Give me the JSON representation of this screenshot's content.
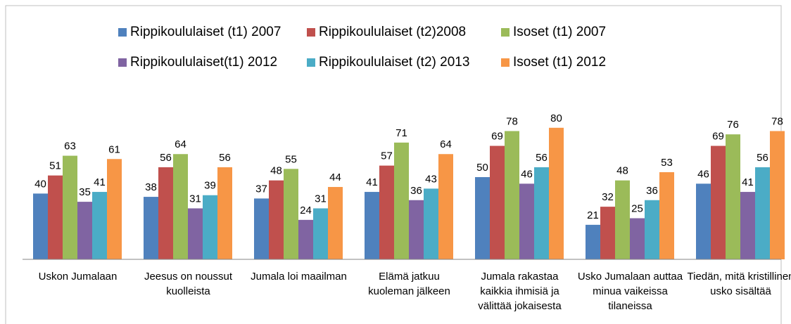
{
  "chart_data": {
    "type": "bar",
    "categories": [
      "Uskon Jumalaan",
      "Jeesus on noussut kuolleista",
      "Jumala loi maailman",
      "Elämä jatkuu kuoleman jälkeen",
      "Jumala rakastaa kaikkia ihmisiä ja välittää jokaisesta",
      "Usko Jumalaan auttaa minua vaikeissa tilaneissa",
      "Tiedän, mitä kristillinen usko sisältää"
    ],
    "series": [
      {
        "name": "Rippikoululaiset (t1) 2007",
        "color": "#4f81bd",
        "values": [
          40,
          38,
          37,
          41,
          50,
          21,
          46
        ]
      },
      {
        "name": "Rippikoululaiset (t2)2008",
        "color": "#c0504d",
        "values": [
          51,
          56,
          48,
          57,
          69,
          32,
          69
        ]
      },
      {
        "name": "Isoset (t1) 2007",
        "color": "#9bbb59",
        "values": [
          63,
          64,
          55,
          71,
          78,
          48,
          76
        ]
      },
      {
        "name": "Rippikoululaiset(t1) 2012",
        "color": "#8064a2",
        "values": [
          35,
          31,
          24,
          36,
          46,
          25,
          41
        ]
      },
      {
        "name": "Rippikoululaiset (t2) 2013",
        "color": "#4bacc6",
        "values": [
          41,
          39,
          31,
          43,
          56,
          36,
          56
        ]
      },
      {
        "name": "Isoset (t1) 2012",
        "color": "#f79646",
        "values": [
          61,
          56,
          44,
          64,
          80,
          53,
          78
        ]
      }
    ],
    "ylim": [
      0,
      100
    ]
  }
}
